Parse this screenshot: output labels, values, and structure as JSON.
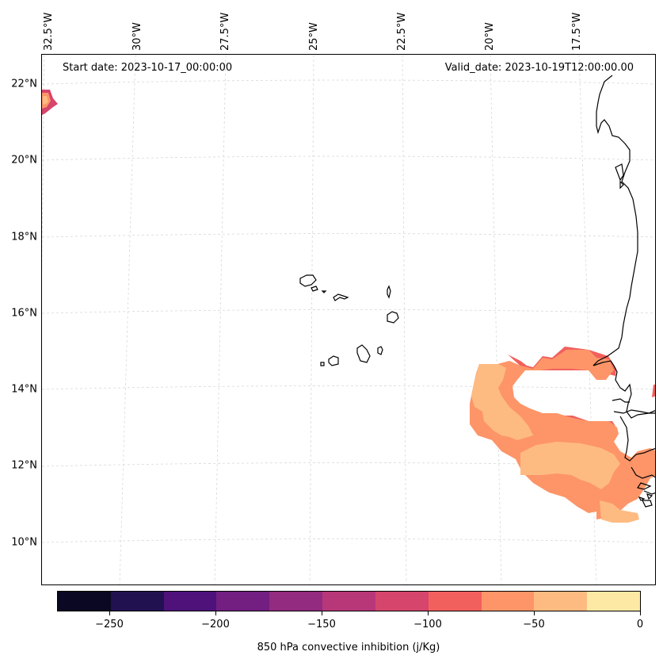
{
  "map": {
    "start_date": "Start date: 2023-10-17_00:00:00",
    "valid_date": "Valid_date: 2023-10-19T12:00:00.00",
    "lon_labels": [
      "32.5°W",
      "30°W",
      "27.5°W",
      "25°W",
      "22.5°W",
      "20°W",
      "17.5°W"
    ],
    "lat_labels": [
      "22°N",
      "20°N",
      "18°N",
      "16°N",
      "14°N",
      "12°N",
      "10°N"
    ],
    "colorbar": {
      "title": "850 hPa convective inhibition (j/Kg)",
      "tick_labels": [
        "−250",
        "−200",
        "−150",
        "−100",
        "−50",
        "0"
      ],
      "colors": [
        "#0a0822",
        "#221150",
        "#4f127b",
        "#721f81",
        "#932b80",
        "#b73779",
        "#d6456c",
        "#f1605d",
        "#fd9568",
        "#febb81",
        "#fde9a4"
      ]
    }
  }
}
